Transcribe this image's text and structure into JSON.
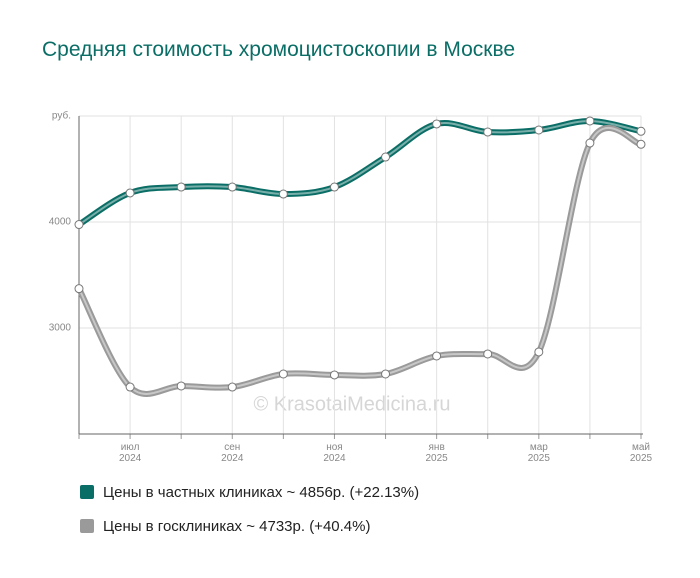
{
  "chart_data": {
    "type": "line",
    "title": "Средняя стоимость хромоцистоскопии в Москве",
    "watermark": "© KrasotaiMedicina.ru",
    "categories": [
      null,
      "июл 2024",
      null,
      "сен 2024",
      null,
      "ноя 2024",
      null,
      "янв 2025",
      null,
      "мар 2025",
      null,
      "май 2025"
    ],
    "series": [
      {
        "name": "Цены в частных клиниках ~ 4856р. (+22.13%)",
        "color": "#0b6e66",
        "values": [
          3976,
          4274,
          4330,
          4330,
          4264,
          4330,
          4613,
          4925,
          4849,
          4868,
          4953,
          4856
        ]
      },
      {
        "name": "Цены в госклиниках ~ 4733р. (+40.4%)",
        "color": "#9a9a9a",
        "values": [
          3371,
          2443,
          2453,
          2443,
          2566,
          2557,
          2566,
          2736,
          2755,
          2774,
          4745,
          4733
        ]
      }
    ],
    "ylim": [
      2000,
      5000
    ],
    "yticks": [
      3000,
      4000,
      {
        "value": 5000,
        "label": "руб."
      }
    ],
    "grid": true
  }
}
